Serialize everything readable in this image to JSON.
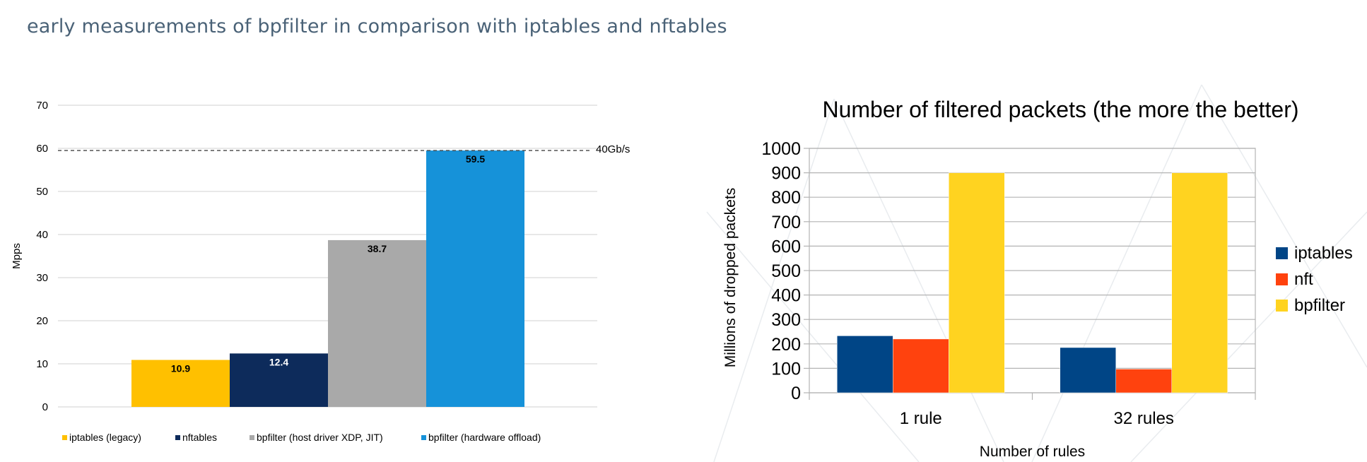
{
  "caption": "early measurements of bpfilter in comparison with iptables and nftables",
  "chart_data": [
    {
      "type": "bar",
      "title": "",
      "xlabel": "",
      "ylabel": "Mpps",
      "ylim": [
        0,
        70
      ],
      "yticks": [
        "0",
        "10",
        "20",
        "30",
        "40",
        "50",
        "60",
        "70"
      ],
      "reference_line": {
        "value": 59.5,
        "label": "40Gb/s"
      },
      "categories": [
        "iptables (legacy)",
        "nftables",
        "bpfilter (host driver XDP, JIT)",
        "bpfilter (hardware offload)"
      ],
      "values": [
        10.9,
        12.4,
        38.7,
        59.5
      ],
      "labels": [
        "10.9",
        "12.4",
        "38.7",
        "59.5"
      ],
      "colors": [
        "#ffc000",
        "#0d2b5b",
        "#a9a9a9",
        "#1692d9"
      ],
      "legend": "bottom",
      "grid": true
    },
    {
      "type": "bar",
      "title": "Number of filtered packets (the more the better)",
      "xlabel": "Number of rules",
      "ylabel": "Millions of dropped packets",
      "ylim": [
        0,
        1000
      ],
      "yticks": [
        "0",
        "100",
        "200",
        "300",
        "400",
        "500",
        "600",
        "700",
        "800",
        "900",
        "1000"
      ],
      "categories": [
        "1 rule",
        "32 rules"
      ],
      "series": [
        {
          "name": "iptables",
          "values": [
            233,
            185
          ],
          "color": "#004586"
        },
        {
          "name": "nft",
          "values": [
            220,
            97
          ],
          "color": "#ff420e"
        },
        {
          "name": "bpfilter",
          "values": [
            900,
            900
          ],
          "color": "#ffd320"
        }
      ],
      "legend": "right",
      "grid": true
    }
  ]
}
